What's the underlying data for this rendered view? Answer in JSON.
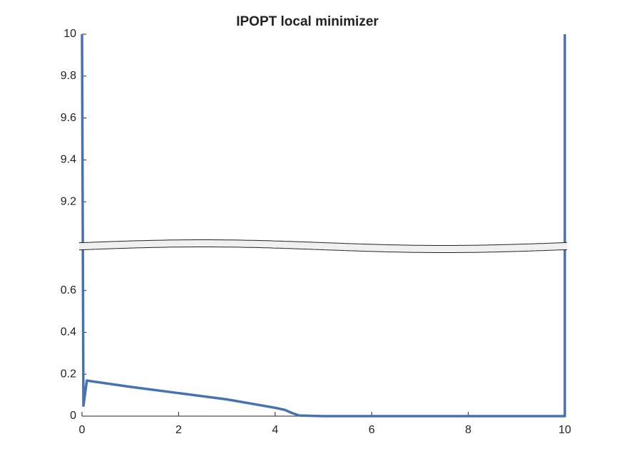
{
  "chart_data": {
    "type": "line",
    "title": "IPOPT local minimizer",
    "x": [
      0,
      0.03,
      0.1,
      1,
      2,
      3,
      4,
      4.2,
      4.35,
      4.5,
      5,
      10,
      10
    ],
    "values": [
      10,
      0.05,
      0.17,
      0.14,
      0.11,
      0.08,
      0.04,
      0.03,
      0.015,
      0.003,
      0,
      0,
      10
    ],
    "color": "#4672b4",
    "xlim": [
      0,
      10
    ],
    "xticks": [
      0,
      2,
      4,
      6,
      8,
      10
    ],
    "ylim": [
      0,
      10
    ],
    "ybreak": [
      0.8,
      9
    ],
    "yticks": [
      0,
      0.2,
      0.4,
      0.6,
      9.2,
      9.4,
      9.6,
      9.8,
      10
    ]
  }
}
